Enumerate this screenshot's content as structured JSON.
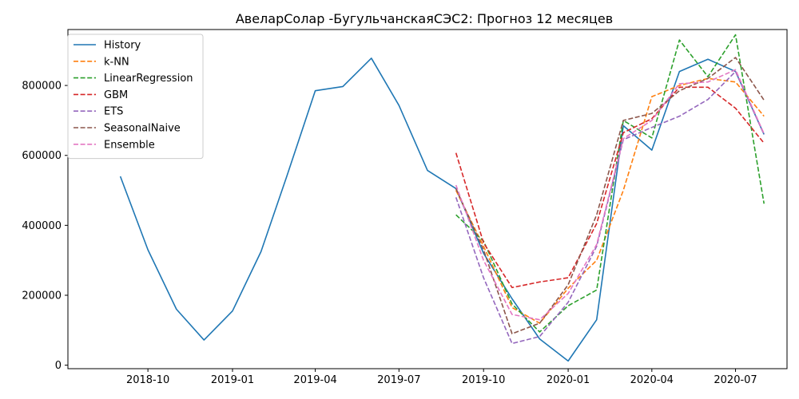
{
  "chart_data": {
    "type": "line",
    "title": "АвеларСолар -БугульчанскаяСЭС2: Прогноз 12 месяцев",
    "xlabel": "",
    "ylabel": "",
    "xlim": [
      "2018-07-06",
      "2020-08-26"
    ],
    "ylim": [
      -10000,
      960000
    ],
    "x_ticks": [
      "2018-10-01",
      "2019-01-01",
      "2019-04-01",
      "2019-07-01",
      "2019-10-01",
      "2020-01-01",
      "2020-04-01",
      "2020-07-01"
    ],
    "x_tick_labels": [
      "2018-10",
      "2019-01",
      "2019-04",
      "2019-07",
      "2019-10",
      "2020-01",
      "2020-04",
      "2020-07"
    ],
    "y_ticks": [
      0,
      200000,
      400000,
      600000,
      800000
    ],
    "y_tick_labels": [
      "0",
      "200000",
      "400000",
      "600000",
      "800000"
    ],
    "grid": false,
    "legend_position": "upper-left",
    "series": [
      {
        "name": "History",
        "color": "#1f77b4",
        "dash": "solid",
        "x": [
          "2018-09-01",
          "2018-10-01",
          "2018-11-01",
          "2018-12-01",
          "2019-01-01",
          "2019-02-01",
          "2019-03-01",
          "2019-04-01",
          "2019-05-01",
          "2019-06-01",
          "2019-07-01",
          "2019-08-01",
          "2019-09-01",
          "2019-10-01",
          "2019-11-01",
          "2019-12-01",
          "2020-01-01",
          "2020-02-01",
          "2020-03-01",
          "2020-04-01",
          "2020-05-01",
          "2020-06-01",
          "2020-07-01",
          "2020-08-01"
        ],
        "y": [
          540000,
          330000,
          160000,
          72000,
          155000,
          325000,
          540000,
          785000,
          797000,
          878000,
          743000,
          557000,
          505000,
          320000,
          190000,
          75000,
          12000,
          130000,
          685000,
          615000,
          840000,
          875000,
          840000,
          660000
        ]
      },
      {
        "name": "k-NN",
        "color": "#ff7f0e",
        "dash": "dashed",
        "x": [
          "2019-09-01",
          "2019-10-01",
          "2019-11-01",
          "2019-12-01",
          "2020-01-01",
          "2020-02-01",
          "2020-03-01",
          "2020-04-01",
          "2020-05-01",
          "2020-06-01",
          "2020-07-01",
          "2020-08-01"
        ],
        "y": [
          500000,
          340000,
          165000,
          120000,
          220000,
          300000,
          500000,
          768000,
          800000,
          820000,
          810000,
          712000
        ]
      },
      {
        "name": "LinearRegression",
        "color": "#2ca02c",
        "dash": "dashed",
        "x": [
          "2019-09-01",
          "2019-10-01",
          "2019-11-01",
          "2019-12-01",
          "2020-01-01",
          "2020-02-01",
          "2020-03-01",
          "2020-04-01",
          "2020-05-01",
          "2020-06-01",
          "2020-07-01",
          "2020-08-01"
        ],
        "y": [
          430000,
          355000,
          175000,
          95000,
          170000,
          215000,
          700000,
          650000,
          930000,
          825000,
          945000,
          462000
        ]
      },
      {
        "name": "GBM",
        "color": "#d62728",
        "dash": "dashed",
        "x": [
          "2019-09-01",
          "2019-10-01",
          "2019-11-01",
          "2019-12-01",
          "2020-01-01",
          "2020-02-01",
          "2020-03-01",
          "2020-04-01",
          "2020-05-01",
          "2020-06-01",
          "2020-07-01",
          "2020-08-01"
        ],
        "y": [
          607000,
          350000,
          222000,
          238000,
          250000,
          405000,
          665000,
          705000,
          795000,
          795000,
          735000,
          635000
        ]
      },
      {
        "name": "ETS",
        "color": "#9467bd",
        "dash": "dashed",
        "x": [
          "2019-09-01",
          "2019-10-01",
          "2019-11-01",
          "2019-12-01",
          "2020-01-01",
          "2020-02-01",
          "2020-03-01",
          "2020-04-01",
          "2020-05-01",
          "2020-06-01",
          "2020-07-01",
          "2020-08-01"
        ],
        "y": [
          480000,
          250000,
          62000,
          82000,
          180000,
          340000,
          645000,
          680000,
          712000,
          760000,
          840000,
          660000
        ]
      },
      {
        "name": "SeasonalNaive",
        "color": "#8c564b",
        "dash": "dashed",
        "x": [
          "2019-09-01",
          "2019-10-01",
          "2019-11-01",
          "2019-12-01",
          "2020-01-01",
          "2020-02-01",
          "2020-03-01",
          "2020-04-01",
          "2020-05-01",
          "2020-06-01",
          "2020-07-01",
          "2020-08-01"
        ],
        "y": [
          505000,
          330000,
          90000,
          120000,
          230000,
          430000,
          700000,
          720000,
          785000,
          820000,
          880000,
          758000
        ]
      },
      {
        "name": "Ensemble",
        "color": "#e377c2",
        "dash": "dashed",
        "x": [
          "2019-09-01",
          "2019-10-01",
          "2019-11-01",
          "2019-12-01",
          "2020-01-01",
          "2020-02-01",
          "2020-03-01",
          "2020-04-01",
          "2020-05-01",
          "2020-06-01",
          "2020-07-01",
          "2020-08-01"
        ],
        "y": [
          515000,
          300000,
          145000,
          130000,
          205000,
          345000,
          648000,
          700000,
          805000,
          810000,
          845000,
          662000
        ]
      }
    ]
  }
}
